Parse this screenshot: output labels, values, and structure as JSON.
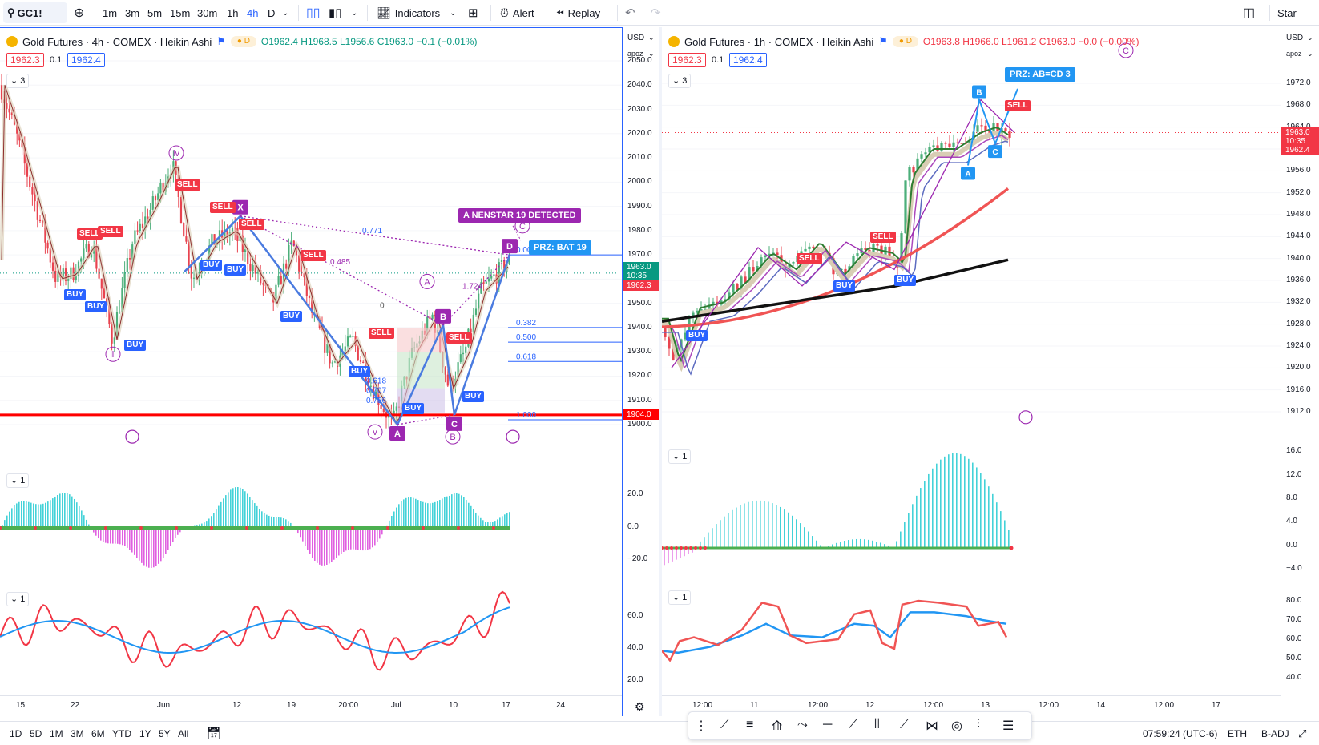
{
  "toolbar": {
    "symbol": "GC1!",
    "timeframes": [
      "1m",
      "3m",
      "5m",
      "15m",
      "30m",
      "1h",
      "4h",
      "D"
    ],
    "active_timeframe": "4h",
    "indicators_label": "Indicators",
    "alert_label": "Alert",
    "replay_label": "Replay",
    "right_label": "Star"
  },
  "left_chart": {
    "title": "Gold Futures · 4h · COMEX · Heikin Ashi",
    "ohlc": "O1962.4 H1968.5 L1956.6 C1963.0 −0.1 (−0.01%)",
    "bid": "1962.3",
    "spread": "0.1",
    "ask": "1962.4",
    "currency": "USD",
    "scale_mode": "apoz",
    "collapse_main": "3",
    "collapse_osc1": "1",
    "collapse_osc2": "1",
    "price_ticks": [
      "2050.0",
      "2040.0",
      "2030.0",
      "2020.0",
      "2010.0",
      "2000.0",
      "1990.0",
      "1980.0",
      "1970.0",
      "1960.0",
      "1950.0",
      "1940.0",
      "1930.0",
      "1920.0",
      "1910.0",
      "1900.0"
    ],
    "current_price": "1963.0",
    "countdown": "10:35",
    "current_price2": "1962.3",
    "support_price": "1904.0",
    "osc1_ticks": [
      "20.0",
      "0.0",
      "−20.0"
    ],
    "osc2_ticks": [
      "60.0",
      "40.0",
      "20.0"
    ],
    "time_ticks": [
      "15",
      "22",
      "Jun",
      "12",
      "19",
      "20:00",
      "Jul",
      "10",
      "17",
      "24"
    ],
    "annotations": {
      "detected": "A NENSTAR 19 DETECTED",
      "prz": "PRZ: BAT 19",
      "fib_0": "0.000",
      "fib_382": "0.382",
      "fib_500": "0.500",
      "fib_618": "0.618",
      "fib_1": "1.000",
      "r_771": "0.771",
      "r_485": "0.485",
      "r_1724": "1.724",
      "r_618": "0.618",
      "r_707": "0.707",
      "r_786": "0.786",
      "zero": "0",
      "pt_x": "X",
      "pt_a": "A",
      "pt_b": "B",
      "pt_c": "C",
      "pt_d": "D",
      "wave_iv": "iv",
      "wave_iii": "iii",
      "wave_v": "v",
      "wave_A": "A",
      "wave_B": "B",
      "wave_C": "C"
    },
    "signals": {
      "buy": "BUY",
      "sell": "SELL"
    }
  },
  "right_chart": {
    "title": "Gold Futures · 1h · COMEX · Heikin Ashi",
    "ohlc": "O1963.8 H1966.0 L1961.2 C1963.0 −0.0 (−0.00%)",
    "bid": "1962.3",
    "spread": "0.1",
    "ask": "1962.4",
    "currency": "USD",
    "scale_mode": "apoz",
    "collapse_main": "3",
    "collapse_osc1": "1",
    "collapse_osc2": "1",
    "price_ticks": [
      "1972.0",
      "1968.0",
      "1964.0",
      "1960.0",
      "1956.0",
      "1952.0",
      "1948.0",
      "1944.0",
      "1940.0",
      "1936.0",
      "1932.0",
      "1928.0",
      "1924.0",
      "1920.0",
      "1916.0",
      "1912.0"
    ],
    "current_price": "1963.0",
    "countdown": "10:35",
    "current_price2": "1962.4",
    "osc1_ticks": [
      "16.0",
      "12.0",
      "8.0",
      "4.0",
      "0.0",
      "−4.0"
    ],
    "osc2_ticks": [
      "80.0",
      "70.0",
      "60.0",
      "50.0",
      "40.0"
    ],
    "time_ticks": [
      "12:00",
      "11",
      "12:00",
      "12",
      "12:00",
      "13",
      "12:00",
      "14",
      "12:00",
      "17"
    ],
    "annotations": {
      "prz": "PRZ: AB=CD 3",
      "pt_a": "A",
      "pt_b": "B",
      "pt_c": "C",
      "wave_C": "C"
    },
    "signals": {
      "buy": "BUY",
      "sell": "SELL",
      "sell_short": "SELL"
    }
  },
  "bottom": {
    "ranges": [
      "1D",
      "5D",
      "1M",
      "3M",
      "6M",
      "YTD",
      "1Y",
      "5Y",
      "All"
    ],
    "clock": "07:59:24 (UTC-6)",
    "session": "ETH",
    "adj": "B-ADJ"
  },
  "colors": {
    "up": "#089981",
    "down": "#f23645",
    "blue": "#2962ff",
    "purple": "#9c27b0",
    "pattern": "#4a7be0"
  }
}
